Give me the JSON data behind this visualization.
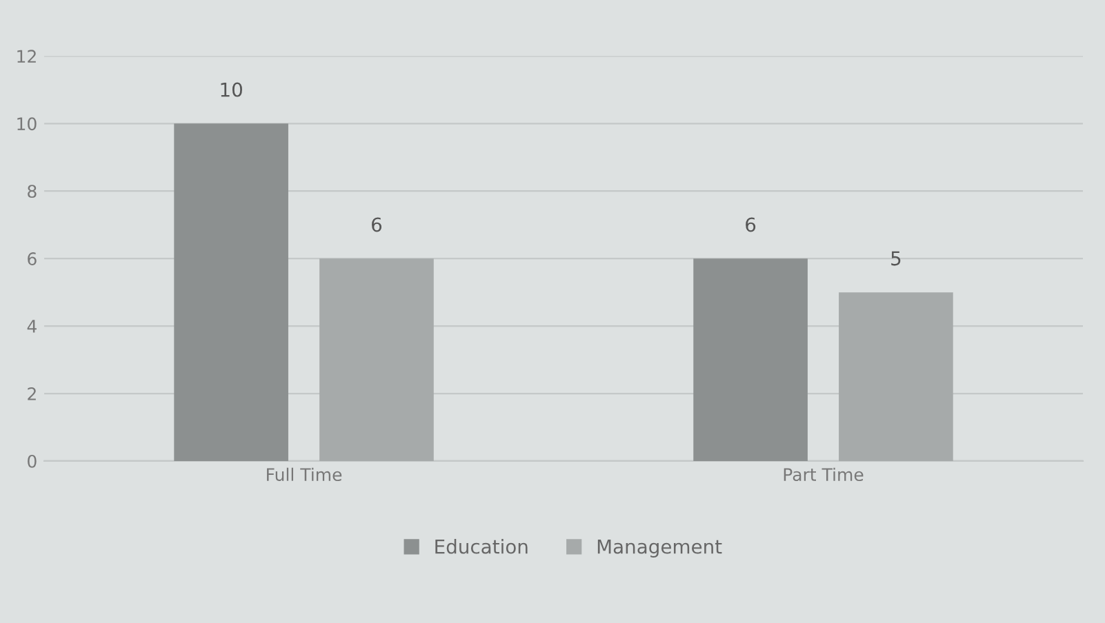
{
  "chart_data": {
    "type": "bar",
    "categories": [
      "Full Time",
      "Part Time"
    ],
    "series": [
      {
        "name": "Education",
        "color": "#8c9090",
        "values": [
          10,
          6
        ]
      },
      {
        "name": "Management",
        "color": "#a6aaaa",
        "values": [
          6,
          5
        ]
      }
    ],
    "ylim": [
      0,
      12
    ],
    "yticks": [
      0,
      2,
      4,
      6,
      8,
      10,
      12
    ],
    "grid": "y",
    "legend": "bottom",
    "data_labels": true
  }
}
